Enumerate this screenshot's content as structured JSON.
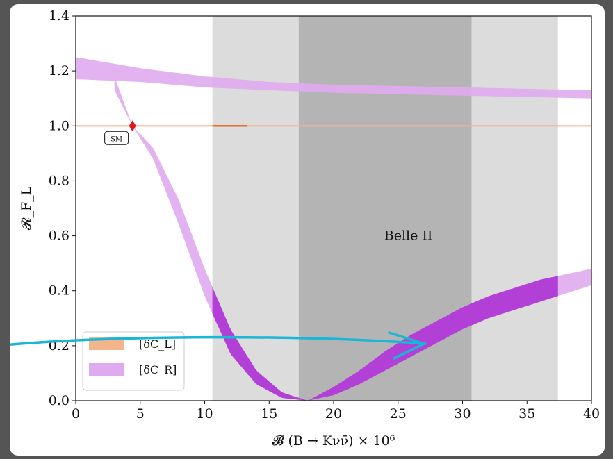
{
  "chart_data": {
    "type": "area",
    "xlabel": "𝓑 (B → Kνν̄) × 10⁶",
    "ylabel": "𝓡_F_L",
    "xlim": [
      0,
      40
    ],
    "ylim": [
      0,
      1.4
    ],
    "xticks": [
      0,
      5,
      10,
      15,
      20,
      25,
      30,
      35,
      40
    ],
    "yticks": [
      0.0,
      0.2,
      0.4,
      0.6,
      0.8,
      1.0,
      1.2,
      1.4
    ],
    "xtick_labels": [
      "0",
      "5",
      "10",
      "15",
      "20",
      "25",
      "30",
      "35",
      "40"
    ],
    "ytick_labels": [
      "0.0",
      "0.2",
      "0.4",
      "0.6",
      "0.8",
      "1.0",
      "1.2",
      "1.4"
    ],
    "grid": false,
    "legend_position": "bottom-left",
    "bands": [
      {
        "label": "",
        "x_range": [
          10.6,
          37.4
        ],
        "color": "#dcdcdc"
      },
      {
        "label": "",
        "x_range": [
          17.3,
          30.7
        ],
        "color": "#b4b4b4"
      }
    ],
    "annotation": "Belle II",
    "sm_point": {
      "x": 4.4,
      "y": 1.0,
      "label": "SM",
      "color": "#e0161b"
    },
    "series": [
      {
        "name": "[δC_L]",
        "color": "#f5b58b",
        "lines": [
          {
            "x": [
              0,
              40
            ],
            "y": [
              1.0,
              1.0
            ]
          }
        ],
        "highlight": {
          "x_range": [
            10.6,
            13.3
          ],
          "y": 1.0,
          "color": "#e07030"
        }
      },
      {
        "name": "[δC_R]",
        "color": "#dfaaef",
        "dark_color": "#b340d6",
        "upper_branch": {
          "x": [
            0,
            5,
            10,
            15,
            20,
            25,
            30,
            35,
            40
          ],
          "y_low": [
            1.17,
            1.16,
            1.14,
            1.13,
            1.12,
            1.115,
            1.11,
            1.105,
            1.1
          ],
          "y_high": [
            1.25,
            1.21,
            1.18,
            1.16,
            1.15,
            1.145,
            1.14,
            1.135,
            1.13
          ]
        },
        "lower_branch": {
          "x": [
            3,
            4.4,
            6,
            8,
            10,
            12,
            14,
            16,
            18,
            20,
            22,
            24,
            26,
            28,
            30,
            32,
            34,
            36,
            38,
            40
          ],
          "y_low": [
            1.13,
            1.0,
            0.88,
            0.64,
            0.38,
            0.17,
            0.06,
            0.01,
            0.0,
            0.02,
            0.06,
            0.11,
            0.16,
            0.21,
            0.26,
            0.3,
            0.33,
            0.36,
            0.39,
            0.42
          ],
          "y_high": [
            1.18,
            1.0,
            0.92,
            0.73,
            0.48,
            0.26,
            0.11,
            0.03,
            0.0,
            0.05,
            0.11,
            0.18,
            0.24,
            0.29,
            0.34,
            0.38,
            0.41,
            0.44,
            0.46,
            0.48
          ],
          "highlight_x_range": [
            10.6,
            37.4
          ]
        }
      }
    ]
  }
}
